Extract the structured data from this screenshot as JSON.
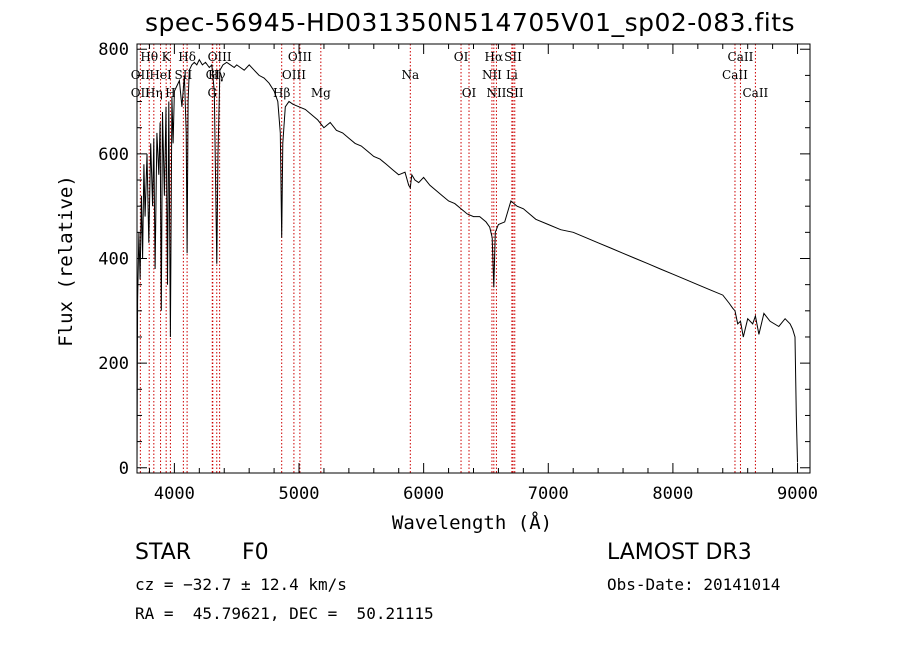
{
  "title": "spec-56945-HD031350N514705V01_sp02-083.fits",
  "info": {
    "class": "STAR",
    "subclass": "F0",
    "survey": "LAMOST DR3",
    "cz": "cz = −32.7 ± 12.4 km/s",
    "obs_date": "Obs-Date: 20141014",
    "radec": "RA =  45.79621, DEC =  50.21115"
  },
  "colors": {
    "axes": "#000000",
    "spectrum": "#000000",
    "lines": "#cc0000"
  },
  "chart_data": {
    "type": "line",
    "title": "spec-56945-HD031350N514705V01_sp02-083.fits",
    "xlabel": "Wavelength (Å)",
    "ylabel": "Flux (relative)",
    "xlim": [
      3700,
      9100
    ],
    "ylim": [
      -10,
      810
    ],
    "xticks": [
      4000,
      5000,
      6000,
      7000,
      8000,
      9000
    ],
    "yticks": [
      0,
      200,
      400,
      600,
      800
    ],
    "grid": false,
    "series": [
      {
        "x": [
          3700,
          3705,
          3715,
          3725,
          3735,
          3745,
          3755,
          3765,
          3780,
          3795,
          3810,
          3825,
          3835,
          3845,
          3860,
          3875,
          3885,
          3895,
          3905,
          3920,
          3933,
          3945,
          3955,
          3968,
          3980,
          3990,
          4000,
          4020,
          4040,
          4060,
          4080,
          4095,
          4102,
          4110,
          4120,
          4140,
          4160,
          4180,
          4200,
          4225,
          4250,
          4280,
          4300,
          4320,
          4330,
          4340,
          4350,
          4365,
          4390,
          4420,
          4450,
          4480,
          4500,
          4530,
          4560,
          4600,
          4640,
          4680,
          4720,
          4760,
          4800,
          4830,
          4850,
          4861,
          4870,
          4890,
          4920,
          4950,
          5000,
          5050,
          5100,
          5150,
          5200,
          5250,
          5300,
          5350,
          5400,
          5450,
          5500,
          5550,
          5600,
          5650,
          5700,
          5750,
          5800,
          5850,
          5880,
          5893,
          5905,
          5930,
          5960,
          6000,
          6050,
          6100,
          6150,
          6200,
          6250,
          6300,
          6350,
          6400,
          6450,
          6500,
          6530,
          6550,
          6563,
          6575,
          6600,
          6650,
          6700,
          6750,
          6800,
          6900,
          7000,
          7100,
          7200,
          7300,
          7400,
          7500,
          7600,
          7700,
          7800,
          7900,
          8000,
          8100,
          8200,
          8300,
          8400,
          8450,
          8480,
          8498,
          8520,
          8542,
          8565,
          8600,
          8640,
          8662,
          8690,
          8730,
          8780,
          8850,
          8900,
          8940,
          8960,
          8980,
          8990,
          9000
        ],
        "values": [
          0,
          320,
          450,
          360,
          520,
          400,
          580,
          480,
          600,
          430,
          620,
          500,
          630,
          380,
          640,
          560,
          660,
          300,
          680,
          520,
          690,
          350,
          700,
          250,
          710,
          620,
          720,
          730,
          740,
          690,
          750,
          640,
          410,
          700,
          760,
          770,
          775,
          770,
          780,
          770,
          775,
          765,
          770,
          720,
          560,
          390,
          600,
          760,
          770,
          775,
          770,
          765,
          770,
          765,
          760,
          770,
          760,
          750,
          745,
          735,
          720,
          700,
          640,
          440,
          620,
          690,
          700,
          695,
          690,
          685,
          675,
          665,
          650,
          660,
          645,
          640,
          630,
          620,
          615,
          605,
          595,
          590,
          580,
          570,
          560,
          565,
          540,
          535,
          560,
          550,
          545,
          555,
          540,
          530,
          520,
          510,
          505,
          495,
          485,
          480,
          480,
          470,
          460,
          440,
          345,
          450,
          465,
          470,
          510,
          500,
          495,
          475,
          465,
          455,
          450,
          440,
          430,
          420,
          410,
          400,
          390,
          380,
          370,
          360,
          350,
          340,
          330,
          315,
          305,
          300,
          275,
          280,
          250,
          285,
          275,
          290,
          255,
          295,
          280,
          270,
          285,
          275,
          265,
          250,
          100,
          10
        ]
      }
    ],
    "annotations": [
      {
        "label": "Hθ",
        "x": 3798,
        "row": 0
      },
      {
        "label": "OII",
        "x": 3727,
        "row": 1
      },
      {
        "label": "OII",
        "x": 3727,
        "row": 2
      },
      {
        "label": "Hη",
        "x": 3835,
        "row": 2
      },
      {
        "label": "HeI",
        "x": 3889,
        "row": 1
      },
      {
        "label": "K",
        "x": 3934,
        "row": 0
      },
      {
        "label": "H",
        "x": 3968,
        "row": 2
      },
      {
        "label": "Hδ",
        "x": 4102,
        "row": 0
      },
      {
        "label": "SII",
        "x": 4072,
        "row": 1
      },
      {
        "label": "GI",
        "x": 4308,
        "row": 1
      },
      {
        "label": "G",
        "x": 4304,
        "row": 2
      },
      {
        "label": "OIII",
        "x": 4363,
        "row": 0
      },
      {
        "label": "Hγ",
        "x": 4340,
        "row": 1
      },
      {
        "label": "Hβ",
        "x": 4861,
        "row": 2
      },
      {
        "label": "OIII",
        "x": 4959,
        "row": 1
      },
      {
        "label": "OIII",
        "x": 5007,
        "row": 0
      },
      {
        "label": "Mg",
        "x": 5175,
        "row": 2
      },
      {
        "label": "Na",
        "x": 5893,
        "row": 1
      },
      {
        "label": "OI",
        "x": 6300,
        "row": 0
      },
      {
        "label": "OI",
        "x": 6364,
        "row": 2
      },
      {
        "label": "Hα",
        "x": 6563,
        "row": 0
      },
      {
        "label": "NII",
        "x": 6548,
        "row": 1
      },
      {
        "label": "NII",
        "x": 6584,
        "row": 2
      },
      {
        "label": "SII",
        "x": 6717,
        "row": 0
      },
      {
        "label": "Li",
        "x": 6708,
        "row": 1
      },
      {
        "label": "SII",
        "x": 6731,
        "row": 2
      },
      {
        "label": "CaII",
        "x": 8498,
        "row": 1
      },
      {
        "label": "CaII",
        "x": 8542,
        "row": 0
      },
      {
        "label": "CaII",
        "x": 8662,
        "row": 2
      }
    ]
  }
}
